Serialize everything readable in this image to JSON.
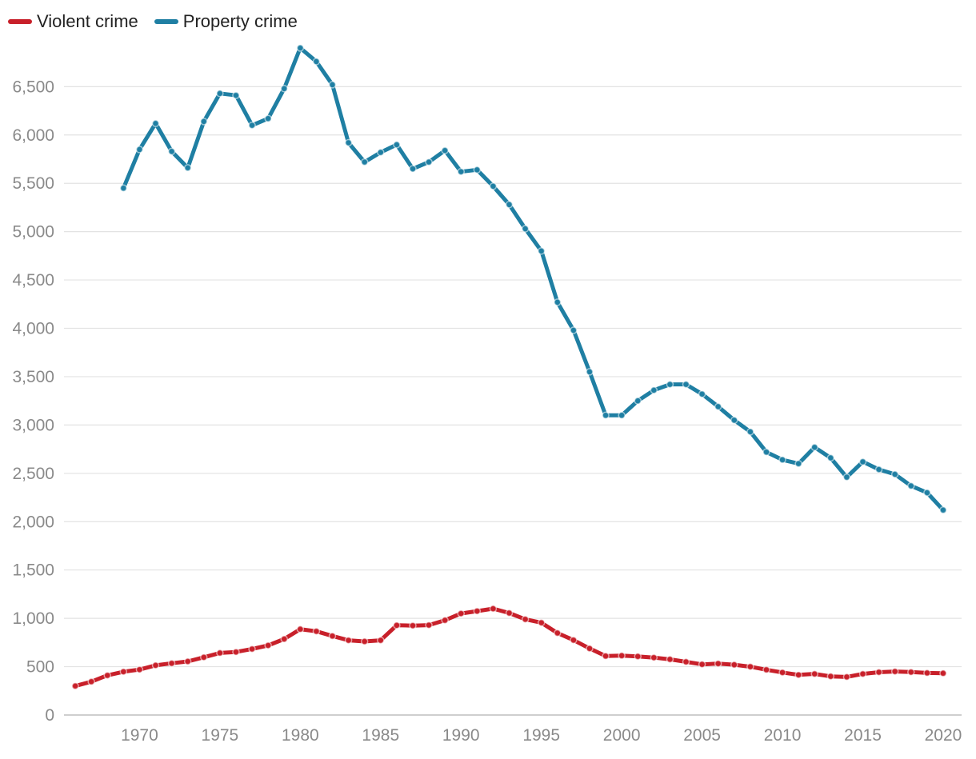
{
  "chart_data": {
    "type": "line",
    "title": "",
    "xlabel": "",
    "ylabel": "",
    "ylim": [
      0,
      6900
    ],
    "xlim": [
      1965.3,
      2021
    ],
    "grid": true,
    "legend_position": "top-left",
    "y_ticks": [
      0,
      500,
      1000,
      1500,
      2000,
      2500,
      3000,
      3500,
      4000,
      4500,
      5000,
      5500,
      6000,
      6500
    ],
    "y_tick_labels": [
      "0",
      "500",
      "1,000",
      "1,500",
      "2,000",
      "2,500",
      "3,000",
      "3,500",
      "4,000",
      "4,500",
      "5,000",
      "5,500",
      "6,000",
      "6,500"
    ],
    "x_ticks": [
      1970,
      1975,
      1980,
      1985,
      1990,
      1995,
      2000,
      2005,
      2010,
      2015,
      2020
    ],
    "x_tick_labels": [
      "1970",
      "1975",
      "1980",
      "1985",
      "1990",
      "1995",
      "2000",
      "2005",
      "2010",
      "2015",
      "2020"
    ],
    "series": [
      {
        "name": "Violent crime",
        "color": "#c8202a",
        "x": [
          1966,
          1967,
          1968,
          1969,
          1970,
          1971,
          1972,
          1973,
          1974,
          1975,
          1976,
          1977,
          1978,
          1979,
          1980,
          1981,
          1982,
          1983,
          1984,
          1985,
          1986,
          1987,
          1988,
          1989,
          1990,
          1991,
          1992,
          1993,
          1994,
          1995,
          1996,
          1997,
          1998,
          1999,
          2000,
          2001,
          2002,
          2003,
          2004,
          2005,
          2006,
          2007,
          2008,
          2009,
          2010,
          2011,
          2012,
          2013,
          2014,
          2015,
          2016,
          2017,
          2018,
          2019,
          2020
        ],
        "values": [
          300,
          345,
          410,
          448,
          470,
          514,
          535,
          554,
          597,
          642,
          652,
          683,
          720,
          786,
          888,
          866,
          817,
          773,
          761,
          773,
          928,
          925,
          930,
          980,
          1050,
          1075,
          1100,
          1055,
          990,
          955,
          848,
          775,
          688,
          610,
          614,
          606,
          594,
          576,
          550,
          524,
          532,
          520,
          500,
          468,
          440,
          415,
          425,
          400,
          394,
          425,
          443,
          450,
          444,
          435,
          432
        ]
      },
      {
        "name": "Property crime",
        "color": "#1f7fa3",
        "x": [
          1969,
          1970,
          1971,
          1972,
          1973,
          1974,
          1975,
          1976,
          1977,
          1978,
          1979,
          1980,
          1981,
          1982,
          1983,
          1984,
          1985,
          1986,
          1987,
          1988,
          1989,
          1990,
          1991,
          1992,
          1993,
          1994,
          1995,
          1996,
          1997,
          1998,
          1999,
          2000,
          2001,
          2002,
          2003,
          2004,
          2005,
          2006,
          2007,
          2008,
          2009,
          2010,
          2011,
          2012,
          2013,
          2014,
          2015,
          2016,
          2017,
          2018,
          2019,
          2020
        ],
        "values": [
          5450,
          5850,
          6120,
          5830,
          5660,
          6140,
          6430,
          6410,
          6100,
          6170,
          6480,
          6900,
          6760,
          6520,
          5920,
          5720,
          5820,
          5900,
          5650,
          5720,
          5840,
          5620,
          5640,
          5470,
          5280,
          5030,
          4800,
          4270,
          3980,
          3550,
          3100,
          3100,
          3250,
          3360,
          3420,
          3420,
          3320,
          3190,
          3050,
          2930,
          2720,
          2640,
          2600,
          2770,
          2660,
          2460,
          2620,
          2540,
          2490,
          2370,
          2300,
          2120
        ]
      }
    ]
  }
}
